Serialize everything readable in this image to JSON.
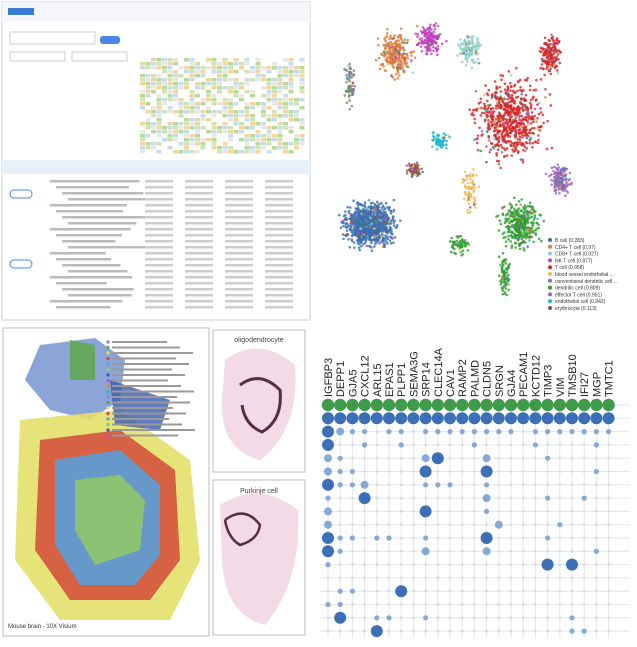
{
  "umap": {
    "legend": [
      {
        "label": "B cell (0.283)",
        "color": "#3a6fb0"
      },
      {
        "label": "CD4+ T cell (0.97)",
        "color": "#e07b39"
      },
      {
        "label": "CD8+ T cell (0.927)",
        "color": "#8fd0c8"
      },
      {
        "label": "NK T cell (0.877)",
        "color": "#c040c0"
      },
      {
        "label": "T cell (0.958)",
        "color": "#d62728"
      },
      {
        "label": "blood vessel endothelial ...",
        "color": "#f2b84b"
      },
      {
        "label": "conventional dendritic cell ...",
        "color": "#7f7f7f"
      },
      {
        "label": "dendritic cell (0.809)",
        "color": "#2ca02c"
      },
      {
        "label": "effector T cell (0.951)",
        "color": "#9467bd"
      },
      {
        "label": "endothelial cell (0.942)",
        "color": "#17becf"
      },
      {
        "label": "erythrocyte (0.113)",
        "color": "#8c564b"
      }
    ]
  },
  "spatial": {
    "caption": "Mouse brain - 10X Visium",
    "panels": [
      "oligodendrocyte",
      "Purkinje cell"
    ]
  },
  "dot_plot": {
    "genes": [
      "IGFBP3",
      "DEPP1",
      "GJA5",
      "CXCL12",
      "ARL15",
      "EPAS1",
      "PLPP1",
      "SEMA3G",
      "SRP14",
      "CLEC14A",
      "CAV1",
      "RAMP2",
      "PALMD",
      "CLDN5",
      "SRGN",
      "GJA4",
      "PECAM1",
      "KCTD12",
      "TIMP3",
      "VIM",
      "TMSB10",
      "IFI27",
      "MGP",
      "TMTC1"
    ],
    "rows": [
      [
        4,
        4,
        4,
        4,
        4,
        4,
        4,
        4,
        4,
        4,
        4,
        4,
        4,
        4,
        4,
        4,
        4,
        4,
        4,
        4,
        4,
        4,
        4,
        4
      ],
      [
        3,
        3,
        3,
        3,
        3,
        3,
        3,
        3,
        3,
        3,
        3,
        3,
        3,
        3,
        3,
        3,
        3,
        3,
        3,
        3,
        3,
        3,
        3,
        3
      ],
      [
        3,
        2,
        1,
        1,
        0,
        1,
        1,
        0,
        1,
        1,
        1,
        1,
        1,
        1,
        1,
        1,
        0,
        1,
        1,
        1,
        1,
        1,
        1,
        1
      ],
      [
        3,
        0,
        0,
        1,
        0,
        0,
        1,
        0,
        0,
        0,
        0,
        0,
        1,
        0,
        0,
        0,
        0,
        1,
        0,
        0,
        0,
        0,
        1,
        0
      ],
      [
        2,
        1,
        0,
        0,
        0,
        0,
        0,
        0,
        2,
        3,
        0,
        0,
        0,
        2,
        0,
        0,
        0,
        0,
        1,
        0,
        0,
        0,
        0,
        0
      ],
      [
        2,
        1,
        1,
        0,
        0,
        0,
        0,
        0,
        3,
        0,
        0,
        0,
        0,
        3,
        0,
        0,
        0,
        0,
        0,
        0,
        0,
        0,
        1,
        0
      ],
      [
        3,
        1,
        1,
        2,
        0,
        0,
        0,
        0,
        1,
        1,
        1,
        0,
        0,
        1,
        0,
        0,
        0,
        0,
        0,
        0,
        0,
        0,
        0,
        0
      ],
      [
        1,
        0,
        0,
        3,
        0,
        0,
        0,
        0,
        0,
        0,
        0,
        0,
        0,
        2,
        0,
        0,
        0,
        0,
        1,
        0,
        0,
        1,
        0,
        0
      ],
      [
        2,
        0,
        0,
        0,
        0,
        0,
        0,
        0,
        3,
        0,
        0,
        0,
        0,
        1,
        0,
        0,
        0,
        0,
        0,
        0,
        0,
        0,
        0,
        0
      ],
      [
        2,
        0,
        0,
        0,
        0,
        0,
        0,
        0,
        0,
        0,
        0,
        0,
        0,
        0,
        2,
        0,
        0,
        0,
        0,
        1,
        0,
        0,
        0,
        0
      ],
      [
        3,
        1,
        1,
        0,
        1,
        1,
        0,
        0,
        1,
        0,
        0,
        0,
        0,
        3,
        0,
        0,
        0,
        0,
        1,
        0,
        0,
        0,
        0,
        0
      ],
      [
        3,
        1,
        0,
        0,
        0,
        0,
        0,
        0,
        2,
        0,
        0,
        0,
        0,
        2,
        0,
        0,
        0,
        0,
        0,
        0,
        0,
        0,
        1,
        0
      ],
      [
        1,
        0,
        0,
        0,
        0,
        0,
        0,
        0,
        0,
        0,
        0,
        0,
        0,
        0,
        0,
        0,
        0,
        0,
        3,
        0,
        3,
        0,
        0,
        0
      ],
      [
        0,
        0,
        0,
        0,
        0,
        0,
        0,
        0,
        0,
        0,
        0,
        0,
        0,
        0,
        0,
        0,
        0,
        0,
        0,
        0,
        0,
        0,
        0,
        0
      ],
      [
        0,
        1,
        1,
        0,
        0,
        0,
        3,
        0,
        0,
        0,
        0,
        0,
        0,
        0,
        0,
        0,
        0,
        0,
        0,
        0,
        0,
        0,
        0,
        0
      ],
      [
        1,
        1,
        0,
        0,
        0,
        0,
        0,
        0,
        0,
        0,
        0,
        0,
        0,
        0,
        0,
        0,
        0,
        0,
        0,
        0,
        0,
        0,
        0,
        0
      ],
      [
        0,
        3,
        0,
        0,
        1,
        1,
        0,
        0,
        1,
        0,
        0,
        0,
        0,
        0,
        0,
        0,
        0,
        0,
        0,
        0,
        1,
        0,
        0,
        0
      ],
      [
        0,
        0,
        0,
        0,
        3,
        0,
        0,
        0,
        0,
        0,
        0,
        0,
        0,
        0,
        0,
        0,
        0,
        0,
        0,
        0,
        1,
        1,
        0,
        0
      ]
    ]
  }
}
